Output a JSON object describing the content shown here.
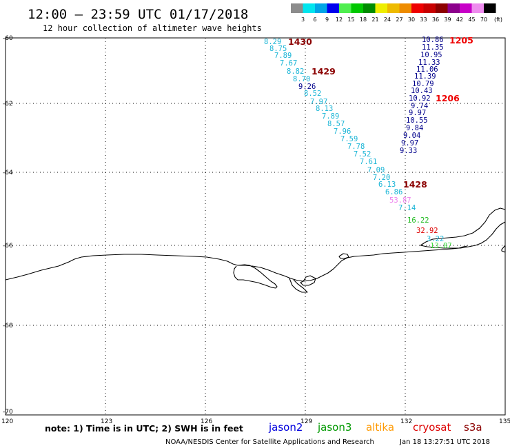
{
  "header": {
    "title": "12:00 – 23:59 UTC 01/17/2018",
    "subtitle": "12 hour collection of altimeter wave heights"
  },
  "color_scale": {
    "unit": "(ft)",
    "labels": [
      "3",
      "6",
      "9",
      "12",
      "15",
      "18",
      "21",
      "24",
      "27",
      "30",
      "33",
      "36",
      "39",
      "42",
      "45",
      "70"
    ],
    "colors": [
      "#8c8c8c",
      "#00e5ee",
      "#00a5e6",
      "#0000ee",
      "#4fee4f",
      "#00c800",
      "#008c00",
      "#eeee00",
      "#eebb00",
      "#ee8c00",
      "#ee0000",
      "#c80000",
      "#8c0000",
      "#8c008c",
      "#c800c8",
      "#ee8cee",
      "#000000"
    ]
  },
  "axes": {
    "lon_labels": [
      "120",
      "123",
      "126",
      "129",
      "132",
      "135"
    ],
    "lat_labels": [
      "-60",
      "-62",
      "-64",
      "-66",
      "-68",
      "-70"
    ]
  },
  "pass_labels": [
    {
      "text": "1430",
      "color": "#8b0000"
    },
    {
      "text": "1429",
      "color": "#8b0000"
    },
    {
      "text": "1428",
      "color": "#8b0000"
    },
    {
      "text": "1205",
      "color": "#ee0000"
    },
    {
      "text": "1206",
      "color": "#ee0000"
    }
  ],
  "observations": [
    {
      "v": "8.29",
      "c": "#1ab5d6"
    },
    {
      "v": "8.75",
      "c": "#1ab5d6"
    },
    {
      "v": "7.89",
      "c": "#1ab5d6"
    },
    {
      "v": "7.67",
      "c": "#1ab5d6"
    },
    {
      "v": "8.82",
      "c": "#1ab5d6"
    },
    {
      "v": "8.70",
      "c": "#1ab5d6"
    },
    {
      "v": "9.26",
      "c": "#00008b"
    },
    {
      "v": "8.52",
      "c": "#1ab5d6"
    },
    {
      "v": "7.97",
      "c": "#1ab5d6"
    },
    {
      "v": "8.13",
      "c": "#1ab5d6"
    },
    {
      "v": "7.89",
      "c": "#1ab5d6"
    },
    {
      "v": "8.57",
      "c": "#1ab5d6"
    },
    {
      "v": "7.96",
      "c": "#1ab5d6"
    },
    {
      "v": "7.59",
      "c": "#1ab5d6"
    },
    {
      "v": "7.78",
      "c": "#1ab5d6"
    },
    {
      "v": "7.52",
      "c": "#1ab5d6"
    },
    {
      "v": "7.61",
      "c": "#1ab5d6"
    },
    {
      "v": "7.09",
      "c": "#1ab5d6"
    },
    {
      "v": "7.20",
      "c": "#1ab5d6"
    },
    {
      "v": "6.13",
      "c": "#1ab5d6"
    },
    {
      "v": "6.86",
      "c": "#1ab5d6"
    },
    {
      "v": "53.87",
      "c": "#ee82ee"
    },
    {
      "v": "7.14",
      "c": "#1ab5d6"
    },
    {
      "v": "16.22",
      "c": "#22bb22"
    },
    {
      "v": "32.92",
      "c": "#dd0000"
    },
    {
      "v": "3.22",
      "c": "#1ab5d6"
    },
    {
      "v": "13.87",
      "c": "#44dd44"
    },
    {
      "v": "10.86",
      "c": "#00008b"
    },
    {
      "v": "11.35",
      "c": "#00008b"
    },
    {
      "v": "10.95",
      "c": "#00008b"
    },
    {
      "v": "11.33",
      "c": "#00008b"
    },
    {
      "v": "11.06",
      "c": "#00008b"
    },
    {
      "v": "11.39",
      "c": "#00008b"
    },
    {
      "v": "10.79",
      "c": "#00008b"
    },
    {
      "v": "10.43",
      "c": "#00008b"
    },
    {
      "v": "10.92",
      "c": "#00008b"
    },
    {
      "v": "9.74",
      "c": "#00008b"
    },
    {
      "v": "9.97",
      "c": "#00008b"
    },
    {
      "v": "10.55",
      "c": "#00008b"
    },
    {
      "v": "9.84",
      "c": "#00008b"
    },
    {
      "v": "9.04",
      "c": "#00008b"
    },
    {
      "v": "9.97",
      "c": "#00008b"
    },
    {
      "v": "9.33",
      "c": "#00008b"
    }
  ],
  "footer": {
    "note": "note:  1) Time is in UTC;  2) SWH is in feet",
    "satellites": [
      {
        "name": "jason2",
        "color": "#0000dd"
      },
      {
        "name": "jason3",
        "color": "#009900"
      },
      {
        "name": "altika",
        "color": "#ff9900"
      },
      {
        "name": "cryosat",
        "color": "#dd0000"
      },
      {
        "name": "s3a",
        "color": "#8b0000"
      }
    ],
    "credit": "NOAA/NESDIS Center for Satellite Applications and Research",
    "timestamp": "Jan 18 13:27:51 UTC 2018"
  }
}
